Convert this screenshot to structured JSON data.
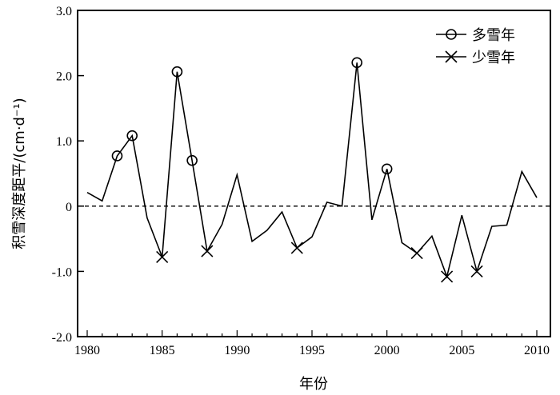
{
  "chart_data": {
    "type": "line",
    "title": "",
    "xlabel": "年份",
    "ylabel": "积雪深度距平/(cm·d⁻¹)",
    "xlim": [
      1979.4,
      2011.0
    ],
    "ylim": [
      -2.0,
      3.0
    ],
    "xticks": [
      1980,
      1985,
      1990,
      1995,
      2000,
      2005,
      2010
    ],
    "yticks": [
      3.0,
      2.0,
      1.0,
      0,
      -1.0,
      -2.0
    ],
    "ytick_labels": [
      "3.0",
      "2.0",
      "1.0",
      "0",
      "-1.0",
      "-2.0"
    ],
    "reference_line": {
      "y": 0,
      "style": "dashed"
    },
    "x": [
      1980,
      1981,
      1982,
      1983,
      1984,
      1985,
      1986,
      1987,
      1988,
      1989,
      1990,
      1991,
      1992,
      1993,
      1994,
      1995,
      1996,
      1997,
      1998,
      1999,
      2000,
      2001,
      2002,
      2003,
      2004,
      2005,
      2006,
      2007,
      2008,
      2009,
      2010
    ],
    "values": [
      0.21,
      0.08,
      0.77,
      1.08,
      -0.18,
      -0.78,
      2.06,
      0.7,
      -0.69,
      -0.28,
      0.48,
      -0.54,
      -0.37,
      -0.09,
      -0.64,
      -0.47,
      0.06,
      0.0,
      2.2,
      -0.21,
      0.57,
      -0.56,
      -0.72,
      -0.46,
      -1.08,
      -0.14,
      -1.0,
      -0.31,
      -0.29,
      0.53,
      0.13
    ],
    "legend_position": "top-right",
    "series": [
      {
        "name": "多雪年",
        "marker": "circle",
        "years": [
          1982,
          1983,
          1986,
          1987,
          1998,
          2000
        ]
      },
      {
        "name": "少雪年",
        "marker": "x",
        "years": [
          1985,
          1988,
          1994,
          2002,
          2004,
          2006
        ]
      }
    ],
    "grid": false
  }
}
